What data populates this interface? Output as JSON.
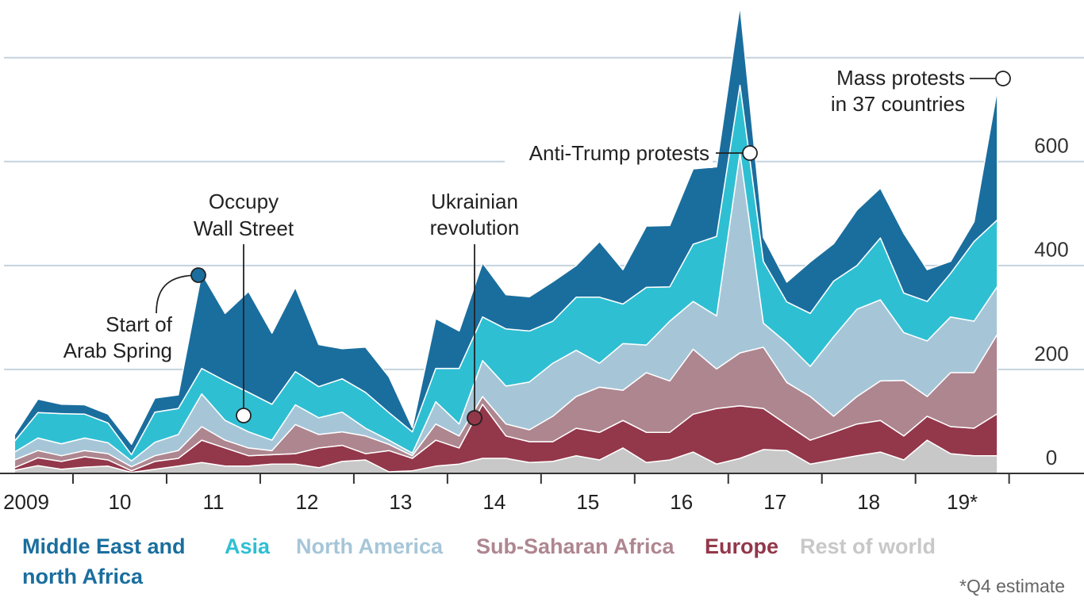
{
  "chart_data": {
    "type": "stacked_area",
    "x": [
      2009.375,
      2009.625,
      2009.875,
      2010.125,
      2010.375,
      2010.625,
      2010.875,
      2011.125,
      2011.375,
      2011.625,
      2011.875,
      2012.125,
      2012.375,
      2012.625,
      2012.875,
      2013.125,
      2013.375,
      2013.625,
      2013.875,
      2014.125,
      2014.375,
      2014.625,
      2014.875,
      2015.125,
      2015.375,
      2015.625,
      2015.875,
      2016.125,
      2016.375,
      2016.625,
      2016.875,
      2017.125,
      2017.375,
      2017.625,
      2017.875,
      2018.125,
      2018.375,
      2018.625,
      2018.875,
      2019.125,
      2019.375,
      2019.625,
      2019.875
    ],
    "xlim": [
      2009.22,
      2020.8
    ],
    "xticks": [
      2010,
      2011,
      2012,
      2013,
      2014,
      2015,
      2016,
      2017,
      2018,
      2019,
      2020
    ],
    "xtick_labels": [
      {
        "value": 2009.5,
        "label": "2009"
      },
      {
        "value": 2010.5,
        "label": "10"
      },
      {
        "value": 2011.5,
        "label": "11"
      },
      {
        "value": 2012.5,
        "label": "12"
      },
      {
        "value": 2013.5,
        "label": "13"
      },
      {
        "value": 2014.5,
        "label": "14"
      },
      {
        "value": 2015.5,
        "label": "15"
      },
      {
        "value": 2016.5,
        "label": "16"
      },
      {
        "value": 2017.5,
        "label": "17"
      },
      {
        "value": 2018.5,
        "label": "18"
      },
      {
        "value": 2019.5,
        "label": "19*"
      }
    ],
    "ylim": [
      0,
      911
    ],
    "yticks": [
      0,
      200,
      400,
      600
    ],
    "grid_lines": [
      0,
      200,
      400,
      600,
      800
    ],
    "series": [
      {
        "name": "Middle East and north Africa",
        "color": "#1a6e9e",
        "values": [
          12,
          26,
          18,
          18,
          17,
          20,
          27,
          26,
          183,
          130,
          194,
          137,
          162,
          81,
          58,
          87,
          69,
          8,
          96,
          72,
          104,
          66,
          66,
          76,
          61,
          107,
          66,
          118,
          118,
          145,
          134,
          153,
          46,
          38,
          99,
          72,
          107,
          96,
          115,
          61,
          23,
          38,
          252
        ]
      },
      {
        "name": "Asia",
        "color": "#2fbfd3",
        "values": [
          21,
          49,
          58,
          46,
          38,
          12,
          58,
          50,
          49,
          76,
          76,
          69,
          64,
          60,
          64,
          69,
          53,
          41,
          64,
          107,
          84,
          110,
          98,
          81,
          102,
          127,
          76,
          111,
          66,
          110,
          153,
          130,
          119,
          79,
          102,
          107,
          84,
          119,
          76,
          76,
          84,
          153,
          128
        ]
      },
      {
        "name": "North America",
        "color": "#a6c6d8",
        "values": [
          15,
          24,
          23,
          24,
          21,
          11,
          26,
          31,
          63,
          38,
          31,
          20,
          38,
          32,
          38,
          15,
          8,
          5,
          43,
          23,
          69,
          73,
          92,
          102,
          89,
          46,
          90,
          53,
          115,
          92,
          102,
          385,
          46,
          76,
          58,
          153,
          168,
          156,
          92,
          107,
          107,
          99,
          92
        ]
      },
      {
        "name": "Sub-Saharan Africa",
        "color": "#ae8690",
        "values": [
          15,
          14,
          11,
          12,
          12,
          8,
          11,
          15,
          26,
          15,
          15,
          8,
          56,
          26,
          26,
          34,
          12,
          5,
          31,
          23,
          15,
          23,
          23,
          49,
          61,
          87,
          58,
          115,
          99,
          125,
          76,
          102,
          118,
          81,
          84,
          31,
          53,
          76,
          107,
          38,
          104,
          107,
          153
        ]
      },
      {
        "name": "Europe",
        "color": "#93374a",
        "values": [
          5,
          15,
          15,
          20,
          12,
          3,
          15,
          15,
          43,
          35,
          20,
          18,
          20,
          38,
          31,
          12,
          41,
          24,
          50,
          31,
          104,
          43,
          40,
          38,
          53,
          53,
          53,
          58,
          53,
          73,
          107,
          101,
          79,
          50,
          46,
          53,
          61,
          61,
          46,
          46,
          52,
          53,
          81
        ]
      },
      {
        "name": "Rest of world",
        "color": "#c8c8c8",
        "values": [
          6,
          15,
          8,
          12,
          14,
          2,
          8,
          14,
          21,
          14,
          14,
          18,
          18,
          11,
          23,
          26,
          3,
          5,
          14,
          18,
          29,
          29,
          21,
          23,
          34,
          26,
          49,
          21,
          26,
          41,
          18,
          29,
          46,
          44,
          18,
          26,
          34,
          41,
          26,
          64,
          38,
          34,
          34
        ]
      }
    ],
    "annotations": [
      {
        "lines": [
          "Start of",
          "Arab Spring"
        ]
      },
      {
        "lines": [
          "Occupy",
          "Wall Street"
        ]
      },
      {
        "lines": [
          "Ukrainian",
          "revolution"
        ]
      },
      {
        "lines": [
          "Anti-Trump protests"
        ]
      },
      {
        "lines": [
          "Mass protests",
          "in 37 countries"
        ]
      }
    ],
    "footnote": "*Q4 estimate"
  }
}
